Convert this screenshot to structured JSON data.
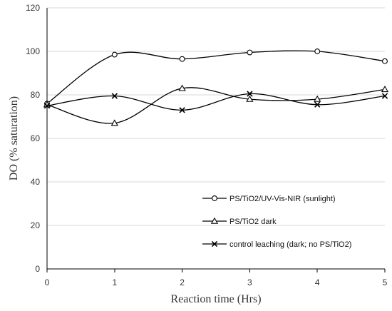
{
  "chart_data": {
    "type": "line",
    "xlabel": "Reaction time (Hrs)",
    "ylabel": "DO (% saturation)",
    "xlim": [
      0,
      5
    ],
    "ylim": [
      0,
      120
    ],
    "xticks": [
      "0",
      "1",
      "2",
      "3",
      "4",
      "5"
    ],
    "yticks": [
      "0",
      "20",
      "40",
      "60",
      "80",
      "100",
      "120"
    ],
    "grid": "horizontal",
    "legend_position": "bottom-right",
    "x": [
      0,
      1,
      2,
      3,
      4,
      5
    ],
    "series": [
      {
        "name": "PS/TiO2/UV-Vis-NIR (sunlight)",
        "marker": "circle",
        "values": [
          76,
          98.5,
          96.5,
          99.5,
          100,
          95.5
        ]
      },
      {
        "name": "PS/TiO2 dark",
        "marker": "triangle",
        "values": [
          75.5,
          67,
          83,
          78,
          78,
          82.5
        ]
      },
      {
        "name": "control leaching (dark; no PS/TiO2)",
        "marker": "x",
        "values": [
          75,
          79.5,
          73,
          80.5,
          75.5,
          79.5
        ]
      }
    ]
  }
}
